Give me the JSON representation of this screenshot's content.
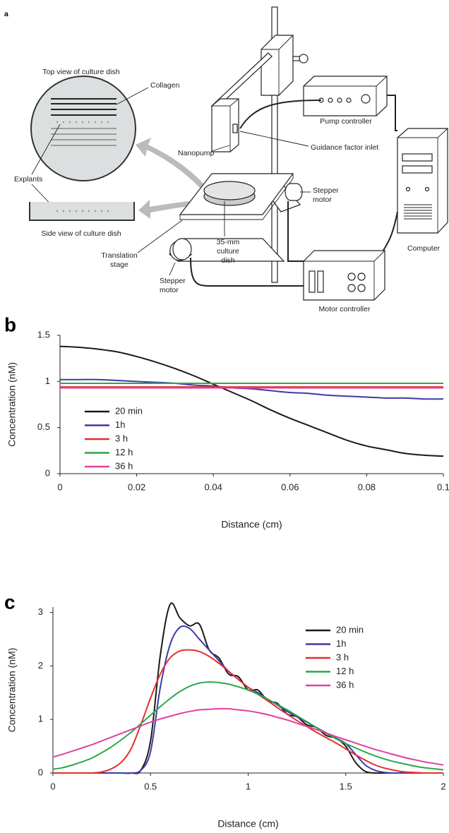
{
  "diagram": {
    "panel_label": "a",
    "labels": {
      "top_view": "Top view of culture dish",
      "collagen": "Collagen",
      "explants": "Explants",
      "side_view": "Side view of culture dish",
      "nanopump": "Nanopump",
      "inlet": "Guidance factor inlet",
      "pump_controller": "Pump controller",
      "computer": "Computer",
      "stepper_motor_right": [
        "Stepper",
        "motor"
      ],
      "translation_stage": [
        "Translation",
        "stage"
      ],
      "dish": [
        "35-mm",
        "culture",
        "dish"
      ],
      "stepper_motor_left": [
        "Stepper",
        "motor"
      ],
      "motor_controller": "Motor controller"
    }
  },
  "chart_data": [
    {
      "type": "line",
      "panel_label": "b",
      "xlabel": "Distance (cm)",
      "ylabel": "Concentration (nM)",
      "x": [
        0,
        0.005,
        0.01,
        0.015,
        0.02,
        0.025,
        0.03,
        0.035,
        0.04,
        0.045,
        0.05,
        0.055,
        0.06,
        0.065,
        0.07,
        0.075,
        0.08,
        0.085,
        0.09,
        0.095,
        0.1
      ],
      "xlim": [
        0,
        0.1
      ],
      "xticks": [
        0,
        0.02,
        0.04,
        0.06,
        0.08,
        0.1
      ],
      "ylim": [
        0,
        1.5
      ],
      "yticks": [
        0,
        0.5,
        1,
        1.5
      ],
      "legend": "center left",
      "series": [
        {
          "name": "20 min",
          "color": "#1a1a1a",
          "values": [
            1.38,
            1.37,
            1.35,
            1.32,
            1.27,
            1.21,
            1.14,
            1.06,
            0.97,
            0.88,
            0.79,
            0.69,
            0.6,
            0.52,
            0.44,
            0.36,
            0.3,
            0.26,
            0.22,
            0.2,
            0.19
          ]
        },
        {
          "name": "1h",
          "color": "#3b3ba6",
          "values": [
            1.02,
            1.02,
            1.02,
            1.01,
            1.0,
            0.99,
            0.98,
            0.96,
            0.95,
            0.93,
            0.92,
            0.9,
            0.88,
            0.87,
            0.85,
            0.84,
            0.83,
            0.82,
            0.82,
            0.81,
            0.81
          ]
        },
        {
          "name": "3 h",
          "color": "#e2302c",
          "values": [
            0.94,
            0.94,
            0.94,
            0.94,
            0.94,
            0.94,
            0.94,
            0.94,
            0.94,
            0.94,
            0.94,
            0.94,
            0.94,
            0.94,
            0.94,
            0.94,
            0.94,
            0.94,
            0.94,
            0.94,
            0.94
          ]
        },
        {
          "name": "12 h",
          "color": "#2aa84a",
          "values": [
            0.98,
            0.98,
            0.98,
            0.98,
            0.98,
            0.98,
            0.98,
            0.98,
            0.98,
            0.98,
            0.98,
            0.98,
            0.98,
            0.98,
            0.98,
            0.98,
            0.98,
            0.98,
            0.98,
            0.98,
            0.98
          ]
        },
        {
          "name": "36 h",
          "color": "#e040a0",
          "values": [
            0.93,
            0.93,
            0.93,
            0.93,
            0.93,
            0.93,
            0.93,
            0.93,
            0.93,
            0.93,
            0.93,
            0.93,
            0.93,
            0.93,
            0.93,
            0.93,
            0.93,
            0.93,
            0.93,
            0.93,
            0.93
          ]
        }
      ]
    },
    {
      "type": "line",
      "panel_label": "c",
      "xlabel": "Distance (cm)",
      "ylabel": "Concentration (nM)",
      "x": [
        0,
        0.05,
        0.1,
        0.15,
        0.2,
        0.25,
        0.3,
        0.35,
        0.4,
        0.45,
        0.5,
        0.55,
        0.6,
        0.65,
        0.7,
        0.75,
        0.8,
        0.85,
        0.9,
        0.95,
        1,
        1.05,
        1.1,
        1.15,
        1.2,
        1.25,
        1.3,
        1.35,
        1.4,
        1.45,
        1.5,
        1.55,
        1.6,
        1.65,
        1.7,
        1.75,
        1.8,
        1.85,
        1.9,
        1.95,
        2
      ],
      "xlim": [
        0,
        2
      ],
      "xticks": [
        0,
        0.5,
        1,
        1.5,
        2
      ],
      "ylim": [
        0,
        3.1
      ],
      "yticks": [
        0,
        1,
        2,
        3
      ],
      "legend": "upper right",
      "series": [
        {
          "name": "20 min",
          "color": "#1a1a1a",
          "values": [
            0,
            0,
            0,
            0,
            0,
            0,
            0,
            0,
            0,
            0.05,
            0.6,
            2.2,
            3.15,
            2.9,
            2.75,
            2.78,
            2.3,
            2.15,
            1.85,
            1.8,
            1.55,
            1.55,
            1.35,
            1.3,
            1.1,
            1.05,
            0.9,
            0.85,
            0.7,
            0.65,
            0.5,
            0.2,
            0.03,
            0,
            0,
            0,
            0,
            0,
            0,
            0,
            0
          ]
        },
        {
          "name": "1h",
          "color": "#3b3ba6",
          "values": [
            0,
            0,
            0,
            0,
            0,
            0,
            0,
            0,
            0,
            0.05,
            0.4,
            1.6,
            2.4,
            2.72,
            2.7,
            2.5,
            2.3,
            2.1,
            1.9,
            1.75,
            1.6,
            1.5,
            1.38,
            1.27,
            1.15,
            1.05,
            0.95,
            0.85,
            0.75,
            0.65,
            0.55,
            0.35,
            0.15,
            0.05,
            0.01,
            0,
            0,
            0,
            0,
            0,
            0
          ]
        },
        {
          "name": "3 h",
          "color": "#e2302c",
          "values": [
            0,
            0,
            0,
            0,
            0,
            0.02,
            0.08,
            0.2,
            0.45,
            0.9,
            1.4,
            1.85,
            2.15,
            2.28,
            2.3,
            2.27,
            2.18,
            2.05,
            1.9,
            1.75,
            1.6,
            1.47,
            1.35,
            1.22,
            1.1,
            0.98,
            0.87,
            0.76,
            0.66,
            0.56,
            0.45,
            0.34,
            0.24,
            0.15,
            0.09,
            0.05,
            0.02,
            0.01,
            0,
            0,
            0
          ]
        },
        {
          "name": "12 h",
          "color": "#2aa84a",
          "values": [
            0.07,
            0.1,
            0.15,
            0.21,
            0.28,
            0.38,
            0.49,
            0.62,
            0.76,
            0.92,
            1.08,
            1.24,
            1.39,
            1.52,
            1.62,
            1.68,
            1.7,
            1.69,
            1.66,
            1.61,
            1.55,
            1.47,
            1.38,
            1.28,
            1.18,
            1.07,
            0.96,
            0.85,
            0.74,
            0.64,
            0.55,
            0.47,
            0.39,
            0.32,
            0.26,
            0.21,
            0.17,
            0.13,
            0.1,
            0.08,
            0.06
          ]
        },
        {
          "name": "36 h",
          "color": "#e040a0",
          "values": [
            0.3,
            0.35,
            0.41,
            0.47,
            0.53,
            0.6,
            0.67,
            0.74,
            0.81,
            0.88,
            0.95,
            1.01,
            1.06,
            1.11,
            1.15,
            1.18,
            1.19,
            1.2,
            1.2,
            1.18,
            1.16,
            1.13,
            1.09,
            1.04,
            0.99,
            0.93,
            0.87,
            0.81,
            0.75,
            0.68,
            0.62,
            0.56,
            0.5,
            0.44,
            0.39,
            0.34,
            0.29,
            0.25,
            0.21,
            0.18,
            0.15
          ]
        }
      ]
    }
  ]
}
